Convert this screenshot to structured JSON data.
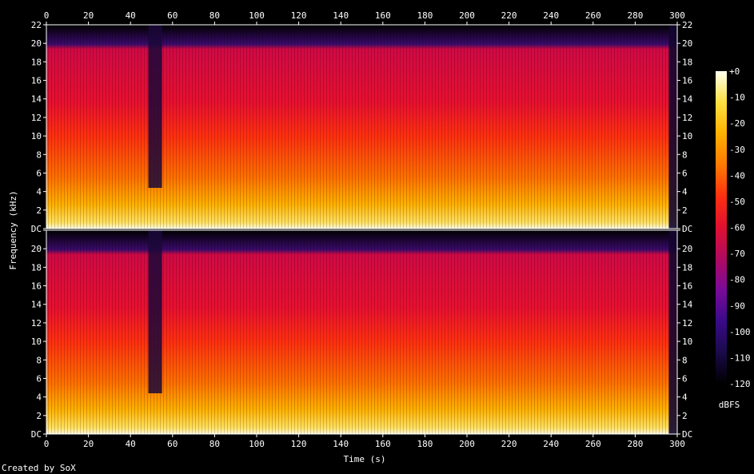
{
  "chart_data": {
    "type": "heatmap",
    "title": "",
    "xlabel": "Time (s)",
    "ylabel": "Frequency (kHz)",
    "xlim": [
      0,
      300
    ],
    "ylim": [
      0,
      22
    ],
    "x_ticks": [
      0,
      20,
      40,
      60,
      80,
      100,
      120,
      140,
      160,
      180,
      200,
      220,
      240,
      260,
      280,
      300
    ],
    "y_ticks": [
      {
        "value": 0,
        "label": "DC"
      },
      {
        "value": 2,
        "label": "2"
      },
      {
        "value": 4,
        "label": "4"
      },
      {
        "value": 6,
        "label": "6"
      },
      {
        "value": 8,
        "label": "8"
      },
      {
        "value": 10,
        "label": "10"
      },
      {
        "value": 12,
        "label": "12"
      },
      {
        "value": 14,
        "label": "14"
      },
      {
        "value": 16,
        "label": "16"
      },
      {
        "value": 18,
        "label": "18"
      },
      {
        "value": 20,
        "label": "20"
      },
      {
        "value": 22,
        "label": "22"
      }
    ],
    "channels": 2,
    "colorbar": {
      "unit": "dBFS",
      "range": [
        -120,
        0
      ],
      "ticks": [
        "+0",
        "-10",
        "-20",
        "-30",
        "-40",
        "-50",
        "-60",
        "-70",
        "-80",
        "-90",
        "-100",
        "-110",
        "-120"
      ],
      "colors": [
        "#000000",
        "#1a0a4a",
        "#3a0a8a",
        "#7a0a9a",
        "#b00a60",
        "#e01030",
        "#ff3010",
        "#ff7a00",
        "#ffb000",
        "#ffe040",
        "#fffff0"
      ]
    },
    "footer": "Created by SoX"
  }
}
